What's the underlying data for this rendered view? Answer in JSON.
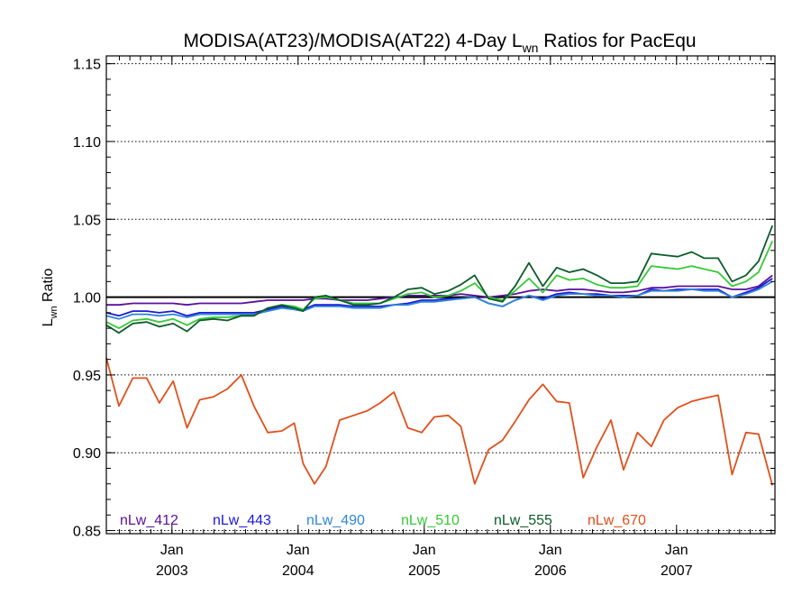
{
  "chart_data": {
    "type": "line",
    "title_main": "MODISA(AT23)/MODISA(AT22) 4-Day L",
    "title_sub": "wn",
    "title_tail": " Ratios for PacEqu",
    "ylabel_main": "L",
    "ylabel_sub": "wn",
    "ylabel_tail": " Ratio",
    "xlim": [
      2002.48,
      2007.78
    ],
    "ylim": [
      0.848,
      1.155
    ],
    "yticks": [
      0.85,
      0.9,
      0.95,
      1.0,
      1.05,
      1.1,
      1.15
    ],
    "ytick_labels": [
      "0.85",
      "0.90",
      "0.95",
      "1.00",
      "1.05",
      "1.10",
      "1.15"
    ],
    "reference_line": 1.0,
    "xticks": [
      {
        "x": 2003.0,
        "month": "Jan",
        "year": "2003"
      },
      {
        "x": 2004.0,
        "month": "Jan",
        "year": "2004"
      },
      {
        "x": 2005.0,
        "month": "Jan",
        "year": "2005"
      },
      {
        "x": 2006.0,
        "month": "Jan",
        "year": "2006"
      },
      {
        "x": 2007.0,
        "month": "Jan",
        "year": "2007"
      }
    ],
    "x": [
      2002.48,
      2002.58,
      2002.69,
      2002.8,
      2002.9,
      2003.01,
      2003.12,
      2003.22,
      2003.33,
      2003.44,
      2003.55,
      2003.65,
      2003.76,
      2003.87,
      2003.97,
      2004.04,
      2004.13,
      2004.22,
      2004.33,
      2004.44,
      2004.55,
      2004.65,
      2004.76,
      2004.87,
      2004.98,
      2005.08,
      2005.19,
      2005.29,
      2005.4,
      2005.51,
      2005.62,
      2005.72,
      2005.83,
      2005.94,
      2006.05,
      2006.15,
      2006.26,
      2006.37,
      2006.48,
      2006.58,
      2006.69,
      2006.8,
      2006.9,
      2007.01,
      2007.12,
      2007.22,
      2007.33,
      2007.44,
      2007.55,
      2007.65,
      2007.76
    ],
    "series": [
      {
        "name": "nLw_412",
        "color": "#5a0f9e",
        "values": [
          0.995,
          0.995,
          0.996,
          0.996,
          0.996,
          0.996,
          0.995,
          0.996,
          0.996,
          0.996,
          0.996,
          0.997,
          0.998,
          0.998,
          0.998,
          0.998,
          0.999,
          0.999,
          0.998,
          0.998,
          0.998,
          0.999,
          1.0,
          1.001,
          1.001,
          1.001,
          1.001,
          1.002,
          1.001,
          1.0,
          1.001,
          1.002,
          1.004,
          1.005,
          1.004,
          1.005,
          1.005,
          1.004,
          1.003,
          1.003,
          1.004,
          1.006,
          1.006,
          1.007,
          1.007,
          1.007,
          1.007,
          1.005,
          1.005,
          1.007,
          1.014
        ]
      },
      {
        "name": "nLw_443",
        "color": "#1a1ad6",
        "values": [
          0.99,
          0.988,
          0.991,
          0.991,
          0.99,
          0.991,
          0.988,
          0.99,
          0.99,
          0.99,
          0.99,
          0.99,
          0.992,
          0.994,
          0.993,
          0.992,
          0.995,
          0.995,
          0.995,
          0.994,
          0.994,
          0.994,
          0.995,
          0.996,
          0.998,
          0.998,
          0.999,
          0.999,
          1.0,
          0.996,
          0.994,
          0.998,
          1.001,
          0.999,
          1.002,
          1.003,
          1.002,
          1.002,
          1.001,
          1.001,
          1.001,
          1.005,
          1.004,
          1.005,
          1.005,
          1.005,
          1.005,
          1.0,
          1.003,
          1.006,
          1.012
        ]
      },
      {
        "name": "nLw_490",
        "color": "#2f86d8",
        "values": [
          0.988,
          0.986,
          0.989,
          0.989,
          0.988,
          0.989,
          0.987,
          0.989,
          0.989,
          0.989,
          0.989,
          0.989,
          0.991,
          0.993,
          0.992,
          0.991,
          0.994,
          0.994,
          0.994,
          0.993,
          0.993,
          0.993,
          0.995,
          0.995,
          0.997,
          0.997,
          0.998,
          0.999,
          1.0,
          0.996,
          0.994,
          0.998,
          1.001,
          0.998,
          1.001,
          1.002,
          1.002,
          1.001,
          1.001,
          1.0,
          1.001,
          1.004,
          1.004,
          1.004,
          1.005,
          1.004,
          1.004,
          1.0,
          1.002,
          1.005,
          1.01
        ]
      },
      {
        "name": "nLw_510",
        "color": "#36c936",
        "values": [
          0.984,
          0.98,
          0.985,
          0.986,
          0.984,
          0.986,
          0.982,
          0.986,
          0.987,
          0.987,
          0.988,
          0.988,
          0.993,
          0.995,
          0.994,
          0.992,
          0.999,
          1.0,
          0.998,
          0.996,
          0.996,
          0.996,
          0.999,
          1.002,
          1.003,
          1.0,
          1.001,
          1.004,
          1.009,
          1.0,
          0.998,
          1.004,
          1.012,
          1.003,
          1.014,
          1.011,
          1.012,
          1.008,
          1.006,
          1.006,
          1.007,
          1.02,
          1.019,
          1.018,
          1.02,
          1.018,
          1.016,
          1.007,
          1.01,
          1.016,
          1.036
        ]
      },
      {
        "name": "nLw_555",
        "color": "#0b5c2a",
        "values": [
          0.982,
          0.977,
          0.983,
          0.984,
          0.981,
          0.983,
          0.978,
          0.985,
          0.986,
          0.985,
          0.988,
          0.988,
          0.993,
          0.995,
          0.993,
          0.991,
          1.0,
          1.001,
          0.998,
          0.995,
          0.995,
          0.996,
          1.0,
          1.005,
          1.006,
          1.002,
          1.004,
          1.008,
          1.014,
          0.999,
          0.997,
          1.007,
          1.022,
          1.007,
          1.019,
          1.016,
          1.018,
          1.014,
          1.009,
          1.009,
          1.01,
          1.028,
          1.027,
          1.026,
          1.029,
          1.025,
          1.025,
          1.01,
          1.014,
          1.023,
          1.046
        ]
      },
      {
        "name": "nLw_670",
        "color": "#e0501b",
        "values": [
          0.961,
          0.93,
          0.948,
          0.948,
          0.932,
          0.946,
          0.916,
          0.934,
          0.936,
          0.941,
          0.95,
          0.93,
          0.913,
          0.914,
          0.919,
          0.893,
          0.88,
          0.891,
          0.921,
          0.924,
          0.927,
          0.932,
          0.939,
          0.916,
          0.913,
          0.923,
          0.924,
          0.917,
          0.88,
          0.902,
          0.908,
          0.92,
          0.934,
          0.944,
          0.933,
          0.932,
          0.884,
          0.904,
          0.921,
          0.889,
          0.913,
          0.904,
          0.921,
          0.929,
          0.933,
          0.935,
          0.937,
          0.886,
          0.913,
          0.912,
          0.879
        ]
      }
    ]
  }
}
